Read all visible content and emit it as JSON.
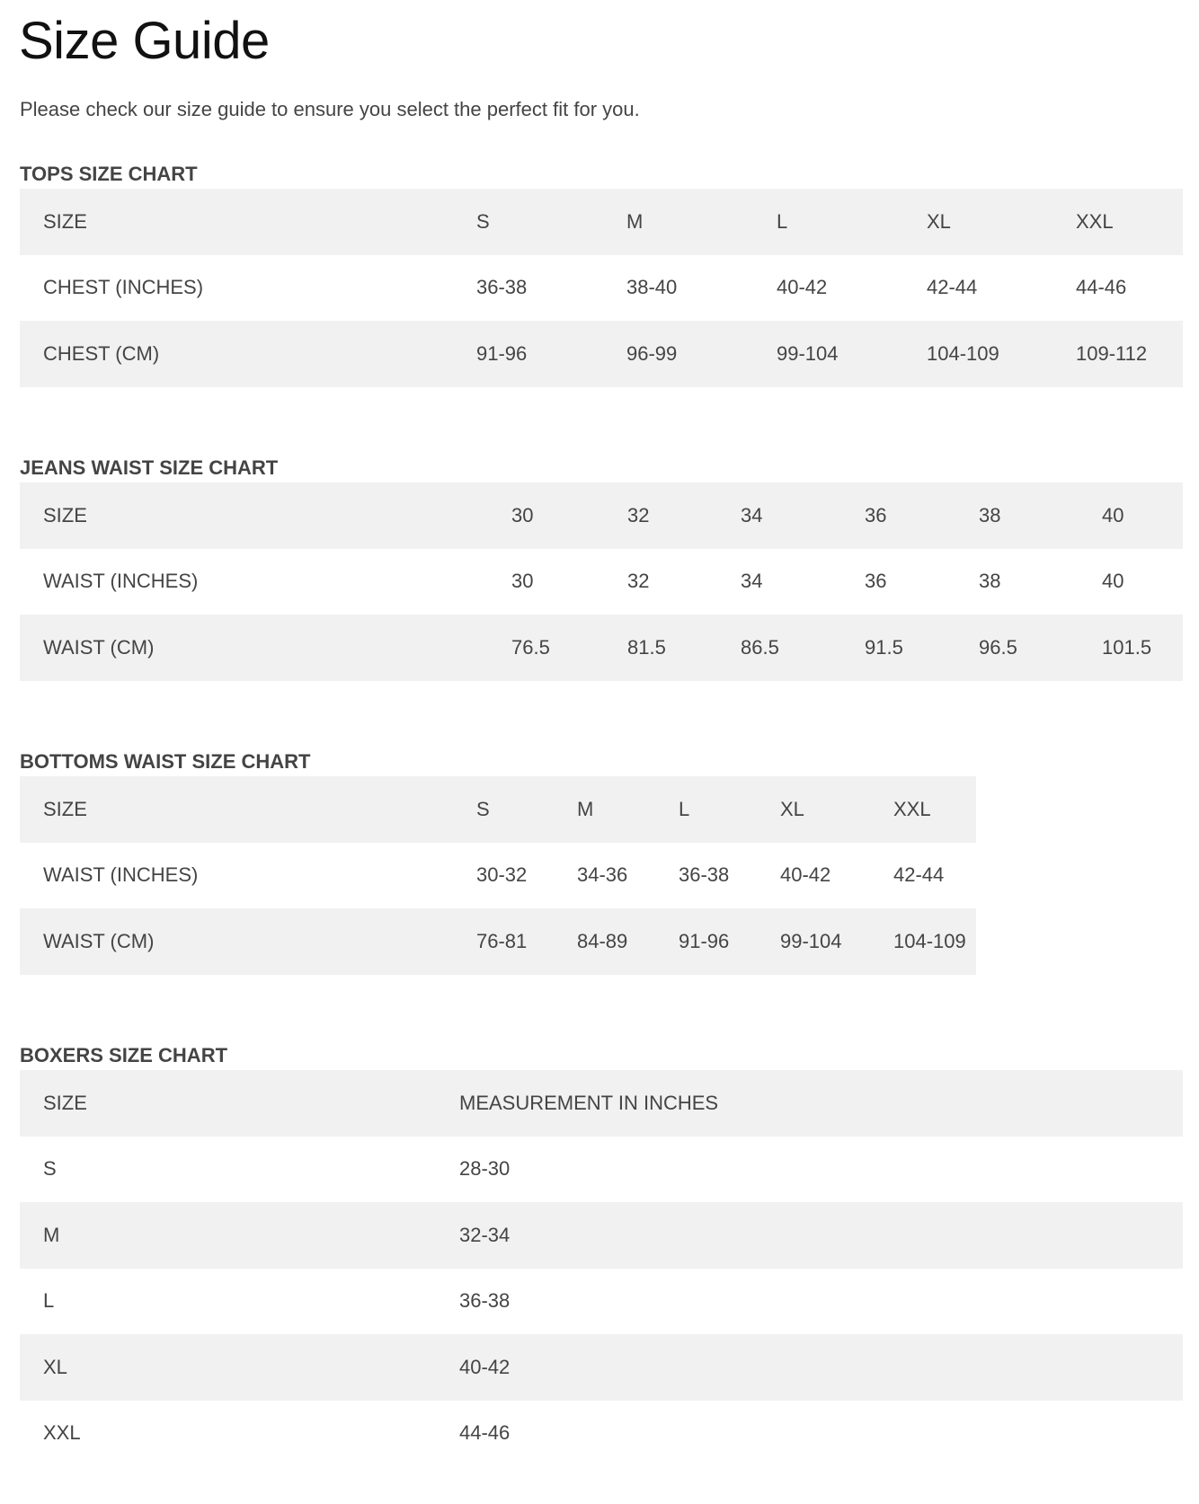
{
  "title": "Size Guide",
  "intro": "Please check our size guide to ensure you select the perfect fit for you.",
  "colors": {
    "row_stripe": "#f1f1f1",
    "text": "#444444"
  },
  "tops": {
    "heading": "TOPS SIZE CHART",
    "rows": [
      [
        "SIZE",
        "S",
        "M",
        "L",
        "XL",
        "XXL"
      ],
      [
        "CHEST (INCHES)",
        "36-38",
        "38-40",
        "40-42",
        "42-44",
        "44-46"
      ],
      [
        "CHEST (CM)",
        "91-96",
        "96-99",
        "99-104",
        "104-109",
        "109-112"
      ]
    ]
  },
  "jeans": {
    "heading": "JEANS WAIST SIZE CHART",
    "rows": [
      [
        "SIZE",
        "30",
        "32",
        "34",
        "36",
        "38",
        "40"
      ],
      [
        "WAIST (INCHES)",
        "30",
        "32",
        "34",
        "36",
        "38",
        "40"
      ],
      [
        "WAIST (CM)",
        "76.5",
        "81.5",
        "86.5",
        "91.5",
        "96.5",
        "101.5"
      ]
    ]
  },
  "bottoms": {
    "heading": "BOTTOMS WAIST SIZE CHART",
    "rows": [
      [
        "SIZE",
        "S",
        "M",
        "L",
        "XL",
        "XXL"
      ],
      [
        "WAIST (INCHES)",
        "30-32",
        "34-36",
        "36-38",
        "40-42",
        "42-44"
      ],
      [
        "WAIST (CM)",
        "76-81",
        "84-89",
        "91-96",
        "99-104",
        "104-109"
      ]
    ]
  },
  "boxers": {
    "heading": "BOXERS SIZE CHART",
    "rows": [
      [
        "SIZE",
        "MEASUREMENT IN INCHES"
      ],
      [
        "S",
        "28-30"
      ],
      [
        "M",
        "32-34"
      ],
      [
        "L",
        "36-38"
      ],
      [
        "XL",
        "40-42"
      ],
      [
        "XXL",
        "44-46"
      ]
    ]
  }
}
